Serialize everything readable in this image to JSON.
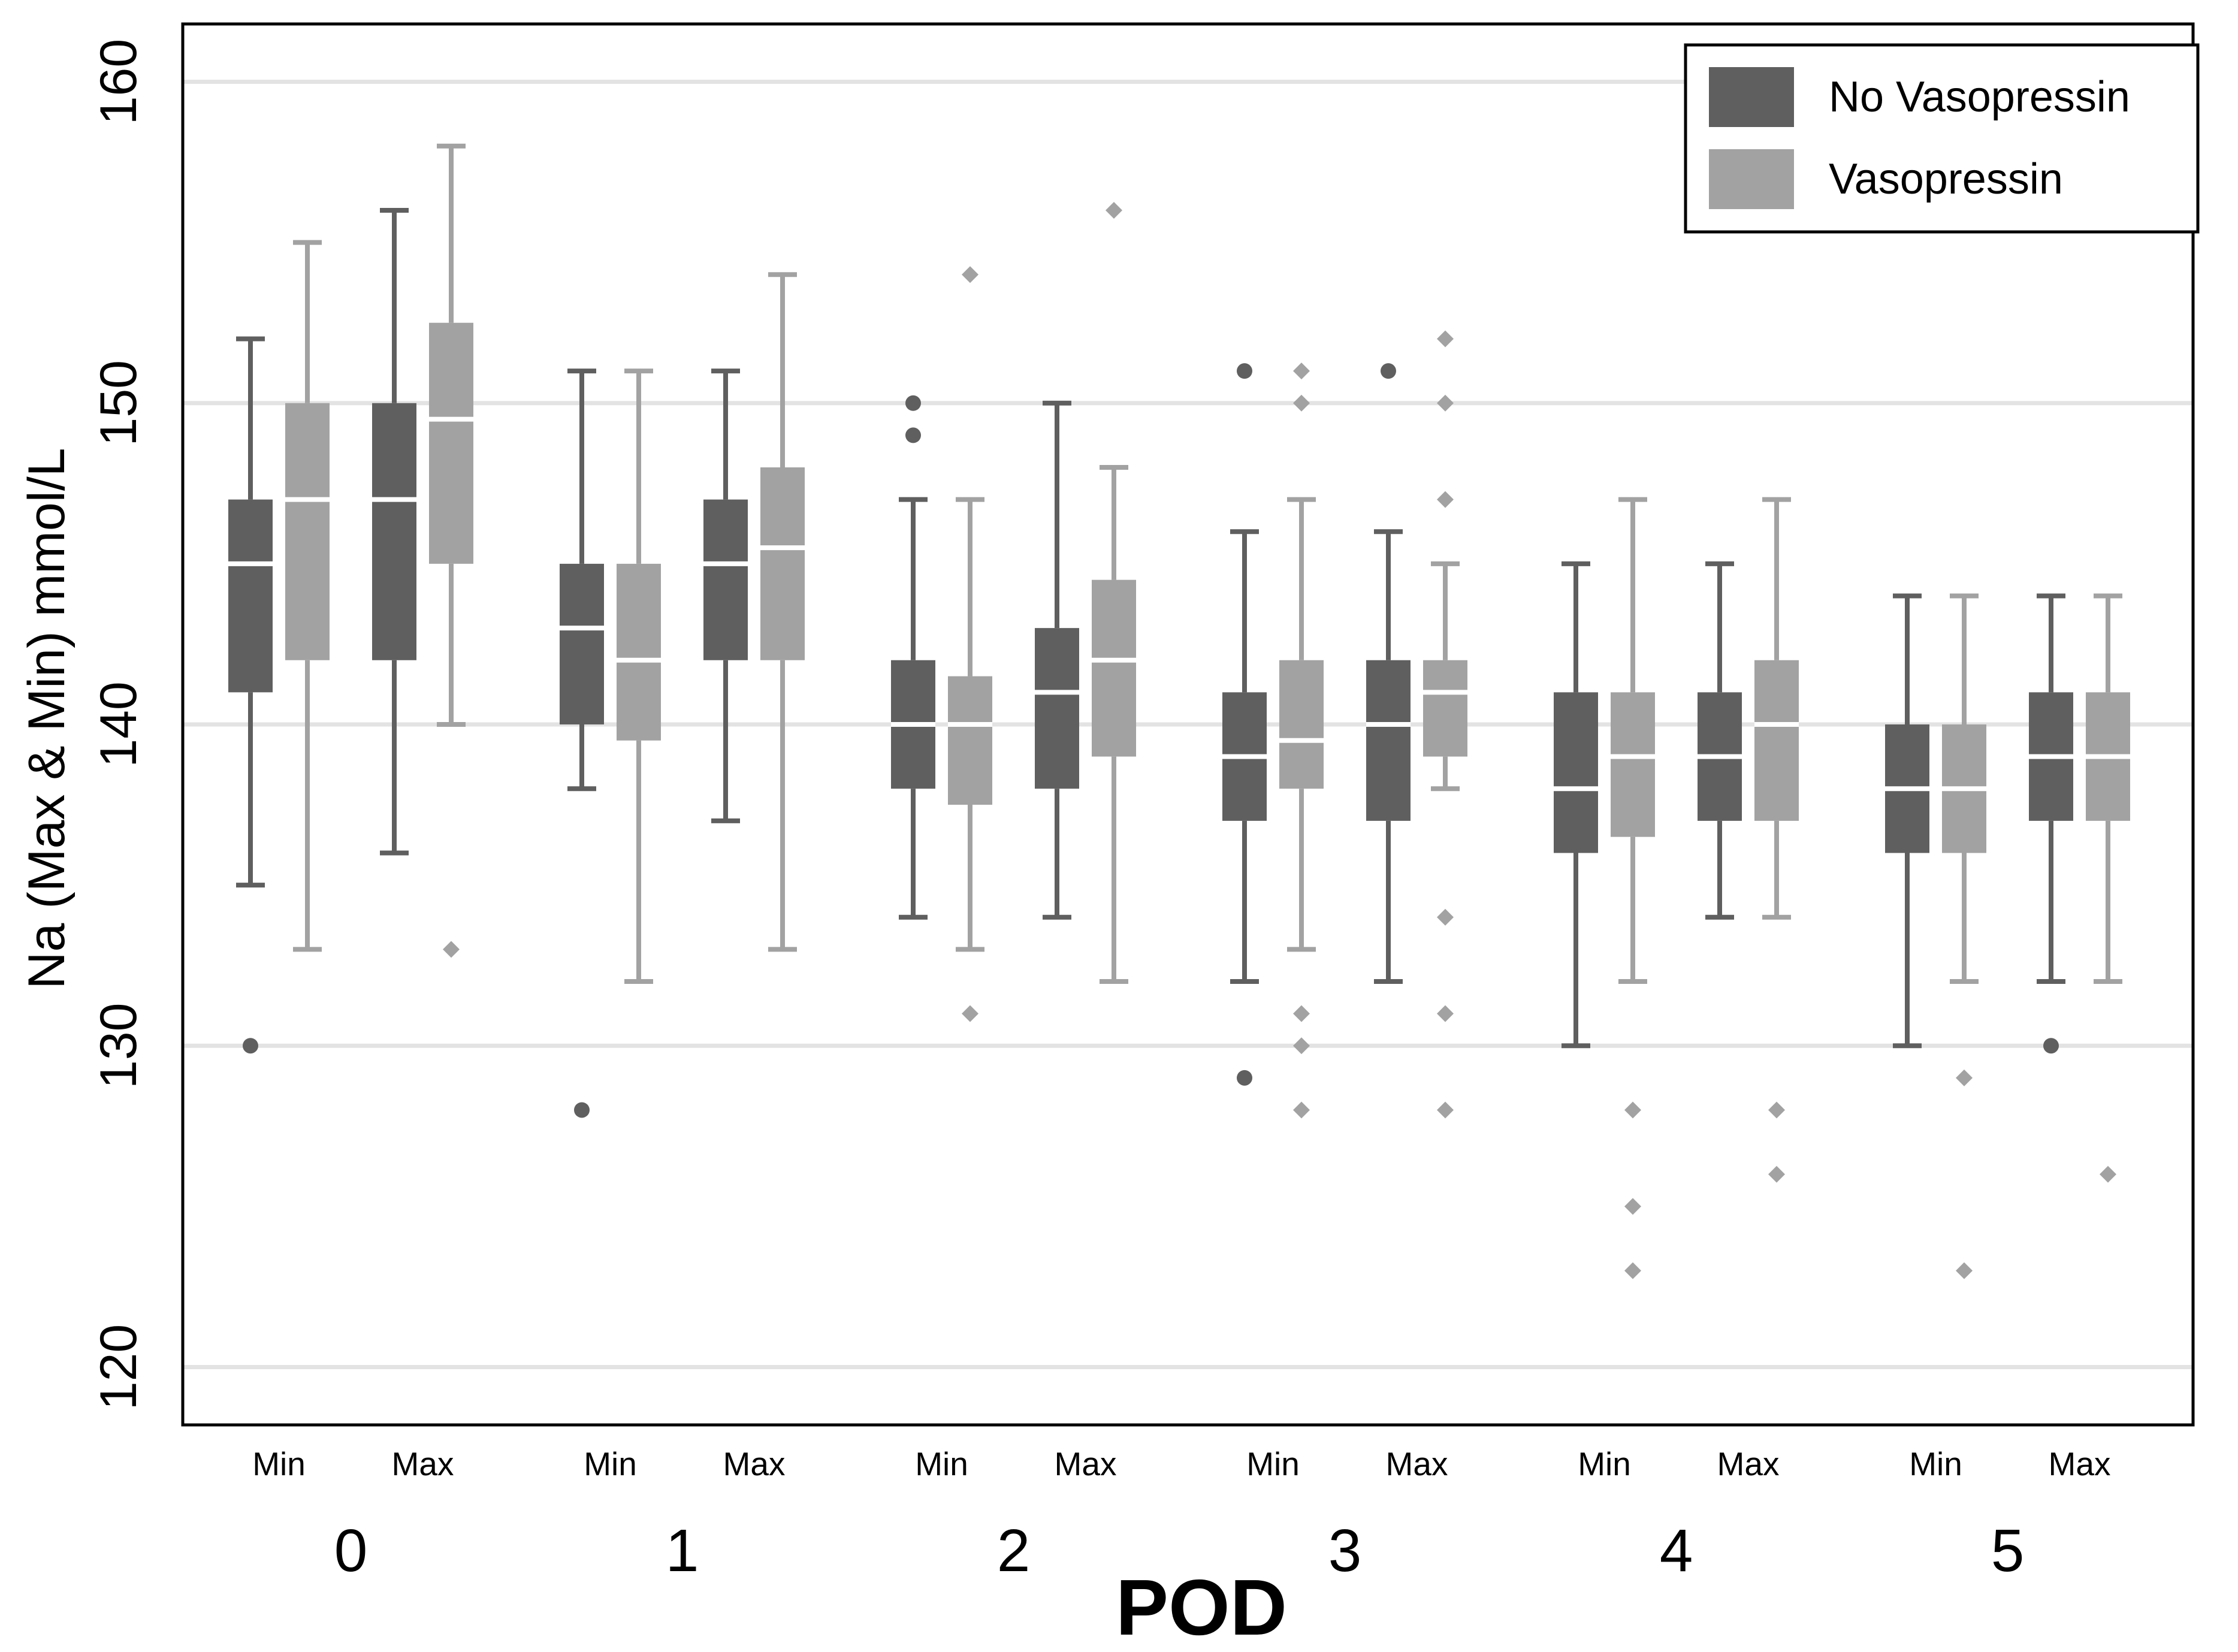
{
  "chart_data": {
    "type": "boxplot",
    "title": "",
    "xlabel": "POD",
    "ylabel": "Na (Max & Min) mmol/L",
    "ylim": [
      118.2,
      161.8
    ],
    "yticks": [
      120,
      130,
      140,
      150,
      160
    ],
    "grid": true,
    "legend_position": "top-right",
    "colors": {
      "No Vasopressin": "#5f5f5f",
      "Vasopressin": "#a2a2a2",
      "grid": "#e3e3e3",
      "median": "#ffffff"
    },
    "pods": [
      "0",
      "1",
      "2",
      "3",
      "4",
      "5"
    ],
    "sublabels": [
      "Min",
      "Max"
    ],
    "series": [
      {
        "name": "No Vasopressin",
        "marker": "dot"
      },
      {
        "name": "Vasopressin",
        "marker": "diamond"
      }
    ],
    "boxes": [
      {
        "pod": "0",
        "stat": "Min",
        "series": "No Vasopressin",
        "whislo": 135,
        "q1": 141,
        "med": 145,
        "q3": 147,
        "whishi": 152,
        "outliers": [
          130
        ]
      },
      {
        "pod": "0",
        "stat": "Min",
        "series": "Vasopressin",
        "whislo": 133,
        "q1": 142,
        "med": 147,
        "q3": 150,
        "whishi": 155,
        "outliers": []
      },
      {
        "pod": "0",
        "stat": "Max",
        "series": "No Vasopressin",
        "whislo": 136,
        "q1": 142,
        "med": 147,
        "q3": 150,
        "whishi": 156,
        "outliers": []
      },
      {
        "pod": "0",
        "stat": "Max",
        "series": "Vasopressin",
        "whislo": 140,
        "q1": 145,
        "med": 149.5,
        "q3": 152.5,
        "whishi": 158,
        "outliers": [
          133
        ]
      },
      {
        "pod": "1",
        "stat": "Min",
        "series": "No Vasopressin",
        "whislo": 138,
        "q1": 140,
        "med": 143,
        "q3": 145,
        "whishi": 151,
        "outliers": [
          128
        ]
      },
      {
        "pod": "1",
        "stat": "Min",
        "series": "Vasopressin",
        "whislo": 132,
        "q1": 139.5,
        "med": 142,
        "q3": 145,
        "whishi": 151,
        "outliers": []
      },
      {
        "pod": "1",
        "stat": "Max",
        "series": "No Vasopressin",
        "whislo": 137,
        "q1": 142,
        "med": 145,
        "q3": 147,
        "whishi": 151,
        "outliers": []
      },
      {
        "pod": "1",
        "stat": "Max",
        "series": "Vasopressin",
        "whislo": 133,
        "q1": 142,
        "med": 145.5,
        "q3": 148,
        "whishi": 154,
        "outliers": []
      },
      {
        "pod": "2",
        "stat": "Min",
        "series": "No Vasopressin",
        "whislo": 134,
        "q1": 138,
        "med": 140,
        "q3": 142,
        "whishi": 147,
        "outliers": [
          149,
          150
        ]
      },
      {
        "pod": "2",
        "stat": "Min",
        "series": "Vasopressin",
        "whislo": 133,
        "q1": 137.5,
        "med": 140,
        "q3": 141.5,
        "whishi": 147,
        "outliers": [
          131,
          154
        ]
      },
      {
        "pod": "2",
        "stat": "Max",
        "series": "No Vasopressin",
        "whislo": 134,
        "q1": 138,
        "med": 141,
        "q3": 143,
        "whishi": 150,
        "outliers": []
      },
      {
        "pod": "2",
        "stat": "Max",
        "series": "Vasopressin",
        "whislo": 132,
        "q1": 139,
        "med": 142,
        "q3": 144.5,
        "whishi": 148,
        "outliers": [
          156
        ]
      },
      {
        "pod": "3",
        "stat": "Min",
        "series": "No Vasopressin",
        "whislo": 132,
        "q1": 137,
        "med": 139,
        "q3": 141,
        "whishi": 146,
        "outliers": [
          129,
          151
        ]
      },
      {
        "pod": "3",
        "stat": "Min",
        "series": "Vasopressin",
        "whislo": 133,
        "q1": 138,
        "med": 139.5,
        "q3": 142,
        "whishi": 147,
        "outliers": [
          128,
          130,
          131,
          150,
          151
        ]
      },
      {
        "pod": "3",
        "stat": "Max",
        "series": "No Vasopressin",
        "whislo": 132,
        "q1": 137,
        "med": 140,
        "q3": 142,
        "whishi": 146,
        "outliers": [
          151
        ]
      },
      {
        "pod": "3",
        "stat": "Max",
        "series": "Vasopressin",
        "whislo": 138,
        "q1": 139,
        "med": 141,
        "q3": 142,
        "whishi": 145,
        "outliers": [
          128,
          131,
          134,
          147,
          150,
          152
        ]
      },
      {
        "pod": "4",
        "stat": "Min",
        "series": "No Vasopressin",
        "whislo": 130,
        "q1": 136,
        "med": 138,
        "q3": 141,
        "whishi": 145,
        "outliers": []
      },
      {
        "pod": "4",
        "stat": "Min",
        "series": "Vasopressin",
        "whislo": 132,
        "q1": 136.5,
        "med": 139,
        "q3": 141,
        "whishi": 147,
        "outliers": [
          123,
          125,
          128
        ]
      },
      {
        "pod": "4",
        "stat": "Max",
        "series": "No Vasopressin",
        "whislo": 134,
        "q1": 137,
        "med": 139,
        "q3": 141,
        "whishi": 145,
        "outliers": []
      },
      {
        "pod": "4",
        "stat": "Max",
        "series": "Vasopressin",
        "whislo": 134,
        "q1": 137,
        "med": 140,
        "q3": 142,
        "whishi": 147,
        "outliers": [
          126,
          128
        ]
      },
      {
        "pod": "5",
        "stat": "Min",
        "series": "No Vasopressin",
        "whislo": 130,
        "q1": 136,
        "med": 138,
        "q3": 140,
        "whishi": 144,
        "outliers": []
      },
      {
        "pod": "5",
        "stat": "Min",
        "series": "Vasopressin",
        "whislo": 132,
        "q1": 136,
        "med": 138,
        "q3": 140,
        "whishi": 144,
        "outliers": [
          123,
          129
        ]
      },
      {
        "pod": "5",
        "stat": "Max",
        "series": "No Vasopressin",
        "whislo": 132,
        "q1": 137,
        "med": 139,
        "q3": 141,
        "whishi": 144,
        "outliers": [
          130
        ]
      },
      {
        "pod": "5",
        "stat": "Max",
        "series": "Vasopressin",
        "whislo": 132,
        "q1": 137,
        "med": 139,
        "q3": 141,
        "whishi": 144,
        "outliers": [
          126
        ]
      }
    ]
  }
}
